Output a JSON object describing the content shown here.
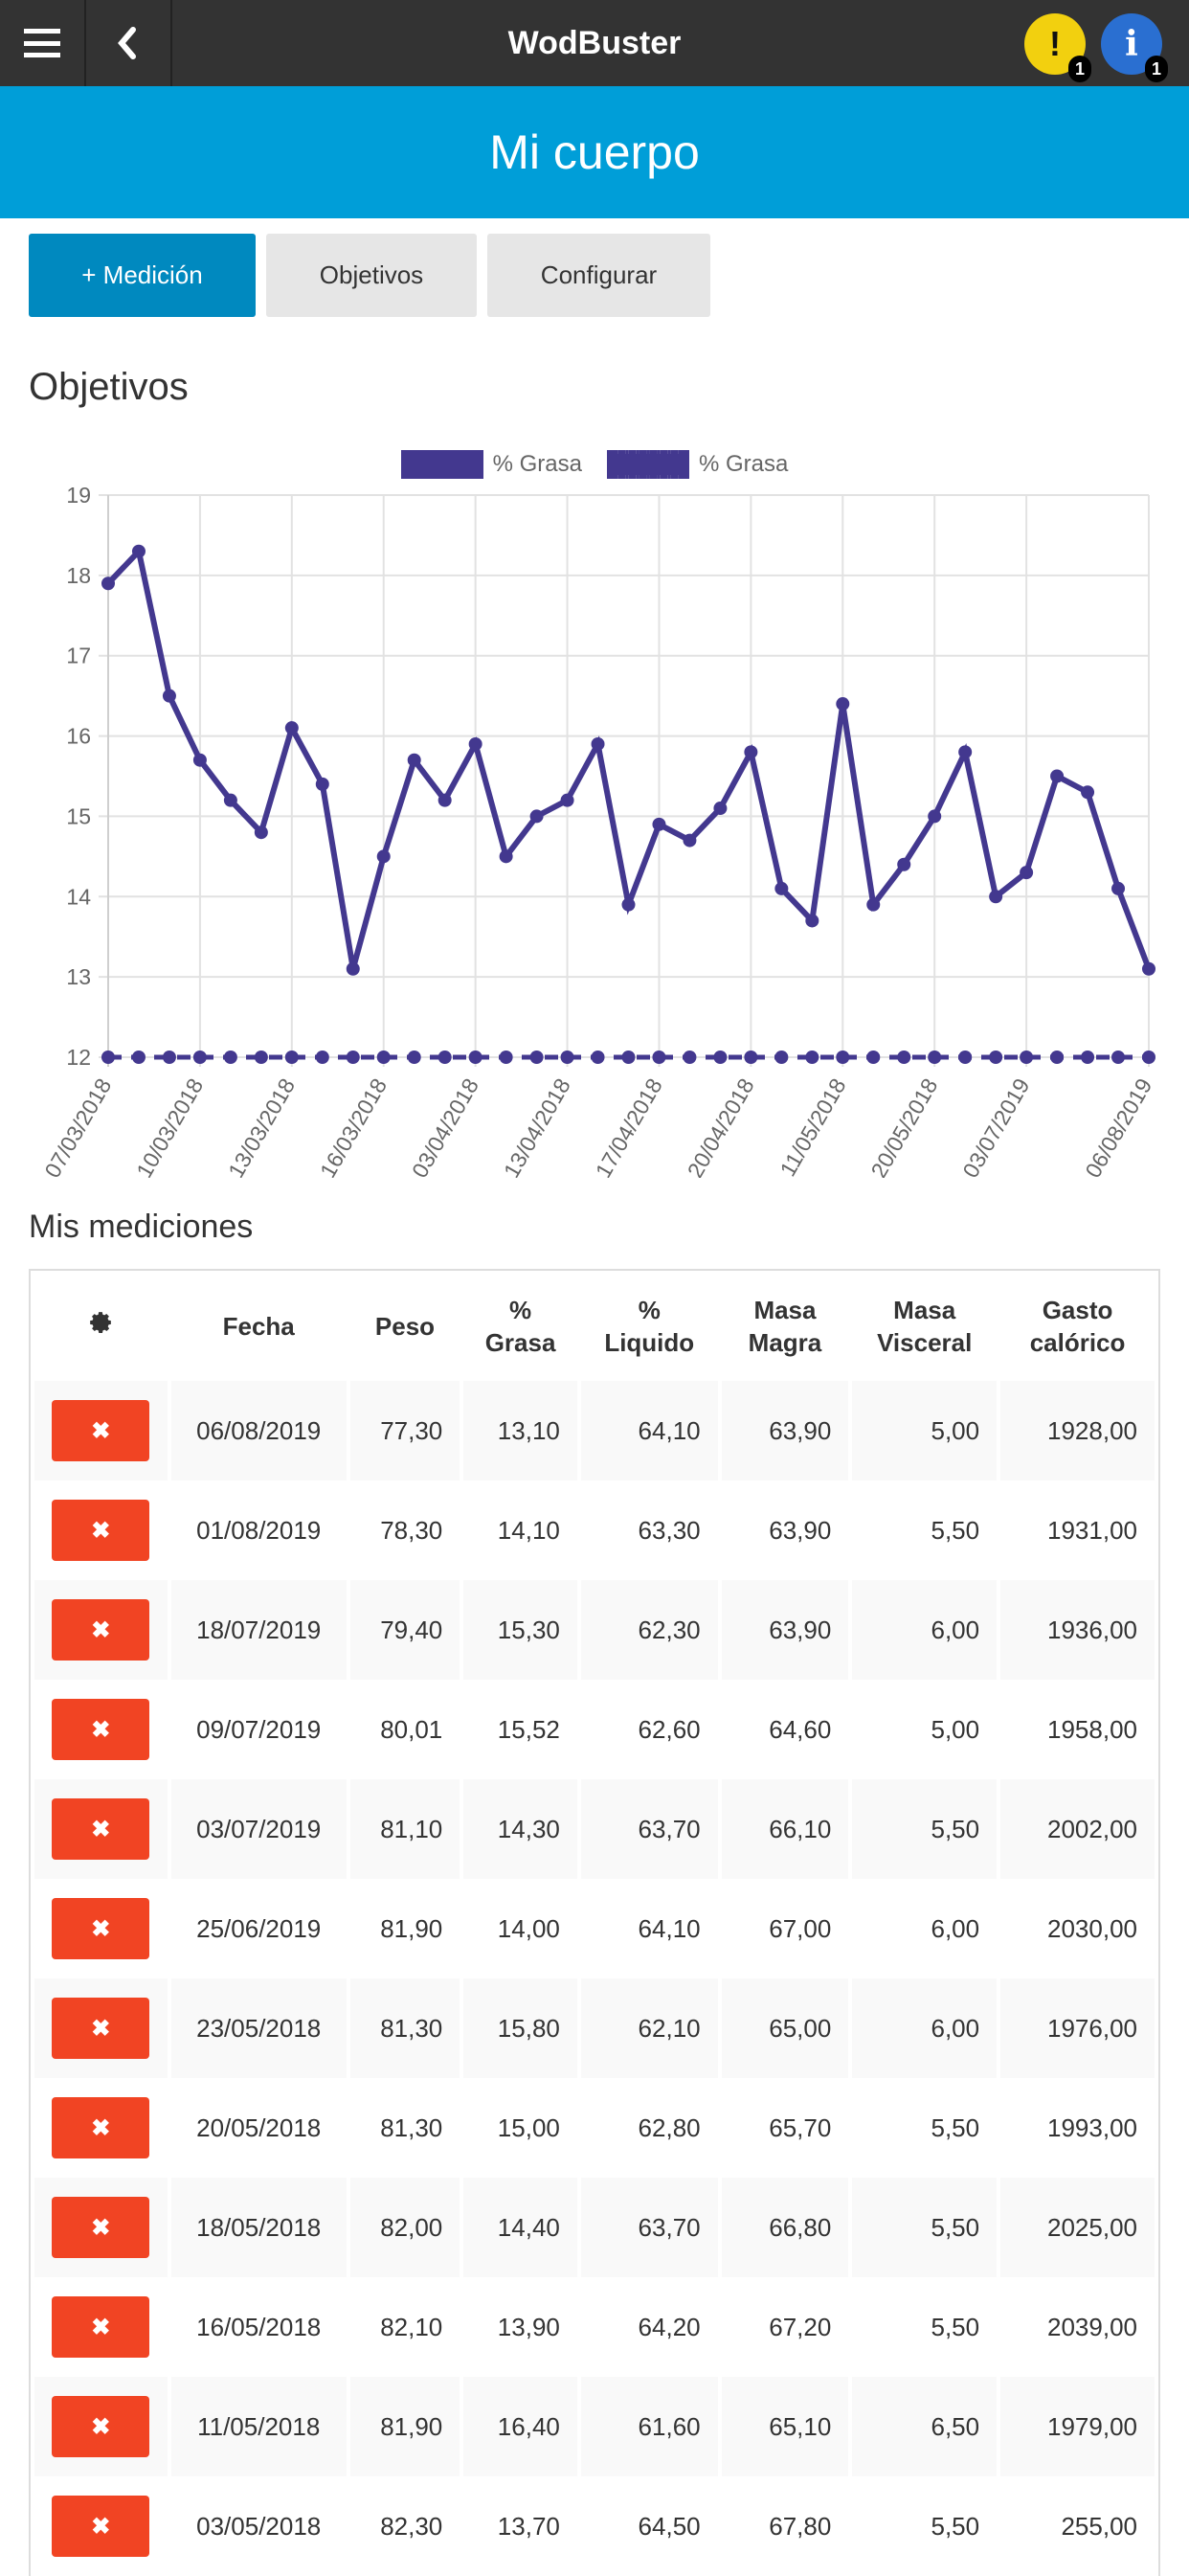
{
  "topbar": {
    "title": "WodBuster",
    "menu_icon": "hamburger-menu-icon",
    "back_icon": "chevron-left-icon",
    "warning_glyph": "!",
    "warning_count": "1",
    "info_glyph": "i",
    "info_count": "1"
  },
  "banner": {
    "title": "Mi cuerpo"
  },
  "actions": {
    "add_measurement": "+ Medición",
    "objectives": "Objetivos",
    "configure": "Configurar"
  },
  "sections": {
    "objectives_title": "Objetivos",
    "measurements_title": "Mis mediciones"
  },
  "colors": {
    "topbar": "#333333",
    "banner": "#009ed8",
    "primary_button": "#0089bf",
    "series": "#43388f",
    "delete_button": "#f14423",
    "warning": "#f2d00f",
    "info": "#2a6fd1"
  },
  "chart_data": {
    "type": "line",
    "title": "",
    "xlabel": "",
    "ylabel": "",
    "ylim": [
      12,
      19
    ],
    "yticks": [
      12,
      13,
      14,
      15,
      16,
      17,
      18,
      19
    ],
    "grid": true,
    "legend_position": "top",
    "x_tick_labels": [
      "07/03/2018",
      "10/03/2018",
      "13/03/2018",
      "16/03/2018",
      "03/04/2018",
      "13/04/2018",
      "17/04/2018",
      "20/04/2018",
      "11/05/2018",
      "20/05/2018",
      "03/07/2019",
      "06/08/2019"
    ],
    "point_count": 35,
    "series": [
      {
        "name": "% Grasa",
        "style": "solid",
        "color": "#43388f",
        "values": [
          17.9,
          18.3,
          16.5,
          15.7,
          15.2,
          14.8,
          16.1,
          15.4,
          13.1,
          14.5,
          15.7,
          15.2,
          15.9,
          14.5,
          15.0,
          15.2,
          15.9,
          13.9,
          14.9,
          14.7,
          15.1,
          15.8,
          14.1,
          13.7,
          16.4,
          13.9,
          14.4,
          15.0,
          15.8,
          14.0,
          14.3,
          15.5,
          15.3,
          14.1,
          13.1
        ]
      },
      {
        "name": "% Grasa",
        "style": "dashed",
        "color": "#43388f",
        "values": [
          12,
          12,
          12,
          12,
          12,
          12,
          12,
          12,
          12,
          12,
          12,
          12,
          12,
          12,
          12,
          12,
          12,
          12,
          12,
          12,
          12,
          12,
          12,
          12,
          12,
          12,
          12,
          12,
          12,
          12,
          12,
          12,
          12,
          12,
          12
        ]
      }
    ]
  },
  "table": {
    "settings_icon": "gear-icon",
    "columns": [
      "Fecha",
      "Peso",
      "% Grasa",
      "% Liquido",
      "Masa Magra",
      "Masa Visceral",
      "Gasto calórico"
    ],
    "column_lines": [
      [
        "Fecha"
      ],
      [
        "Peso"
      ],
      [
        "%",
        "Grasa"
      ],
      [
        "%",
        "Liquido"
      ],
      [
        "Masa",
        "Magra"
      ],
      [
        "Masa",
        "Visceral"
      ],
      [
        "Gasto",
        "calórico"
      ]
    ],
    "delete_glyph": "✖",
    "rows": [
      [
        "06/08/2019",
        "77,30",
        "13,10",
        "64,10",
        "63,90",
        "5,00",
        "1928,00"
      ],
      [
        "01/08/2019",
        "78,30",
        "14,10",
        "63,30",
        "63,90",
        "5,50",
        "1931,00"
      ],
      [
        "18/07/2019",
        "79,40",
        "15,30",
        "62,30",
        "63,90",
        "6,00",
        "1936,00"
      ],
      [
        "09/07/2019",
        "80,01",
        "15,52",
        "62,60",
        "64,60",
        "5,00",
        "1958,00"
      ],
      [
        "03/07/2019",
        "81,10",
        "14,30",
        "63,70",
        "66,10",
        "5,50",
        "2002,00"
      ],
      [
        "25/06/2019",
        "81,90",
        "14,00",
        "64,10",
        "67,00",
        "6,00",
        "2030,00"
      ],
      [
        "23/05/2018",
        "81,30",
        "15,80",
        "62,10",
        "65,00",
        "6,00",
        "1976,00"
      ],
      [
        "20/05/2018",
        "81,30",
        "15,00",
        "62,80",
        "65,70",
        "5,50",
        "1993,00"
      ],
      [
        "18/05/2018",
        "82,00",
        "14,40",
        "63,70",
        "66,80",
        "5,50",
        "2025,00"
      ],
      [
        "16/05/2018",
        "82,10",
        "13,90",
        "64,20",
        "67,20",
        "5,50",
        "2039,00"
      ],
      [
        "11/05/2018",
        "81,90",
        "16,40",
        "61,60",
        "65,10",
        "6,50",
        "1979,00"
      ],
      [
        "03/05/2018",
        "82,30",
        "13,70",
        "64,50",
        "67,80",
        "5,50",
        "255,00"
      ]
    ]
  }
}
